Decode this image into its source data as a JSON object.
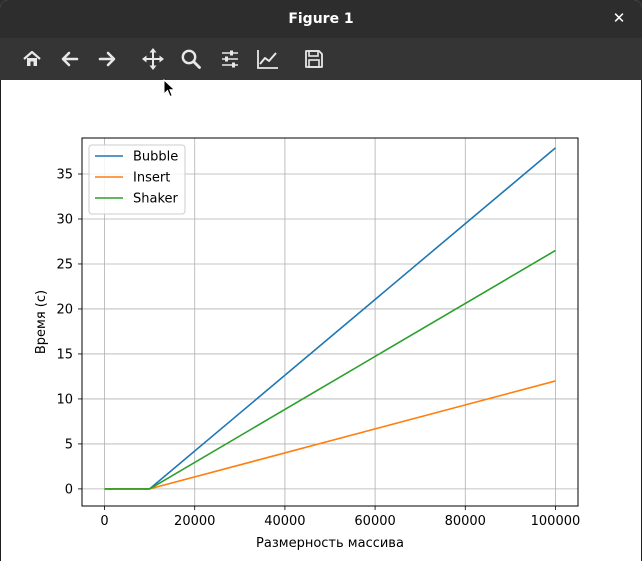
{
  "window": {
    "title": "Figure 1",
    "close_symbol": "✕"
  },
  "toolbar": {
    "buttons": [
      {
        "name": "home-button",
        "icon": "home-icon"
      },
      {
        "name": "back-button",
        "icon": "arrow-left-icon"
      },
      {
        "name": "forward-button",
        "icon": "arrow-right-icon"
      },
      {
        "name": "pan-button",
        "icon": "move-icon"
      },
      {
        "name": "zoom-button",
        "icon": "magnifier-icon"
      },
      {
        "name": "configure-subplots-button",
        "icon": "sliders-icon"
      },
      {
        "name": "edit-axis-button",
        "icon": "line-chart-icon"
      },
      {
        "name": "save-button",
        "icon": "floppy-disk-icon"
      }
    ]
  },
  "chart_data": {
    "type": "line",
    "title": "",
    "xlabel": "Размерность массива",
    "ylabel": "Время (с)",
    "xlim": [
      -5000,
      105000
    ],
    "ylim": [
      -1.9,
      39.0
    ],
    "xticks": [
      0,
      20000,
      40000,
      60000,
      80000,
      100000
    ],
    "yticks": [
      0,
      5,
      10,
      15,
      20,
      25,
      30,
      35
    ],
    "grid": true,
    "legend_position": "upper-left",
    "series": [
      {
        "name": "Bubble",
        "color": "#1f77b4",
        "x": [
          0,
          10000,
          100000
        ],
        "y": [
          0,
          0,
          37.9
        ]
      },
      {
        "name": "Insert",
        "color": "#ff7f0e",
        "x": [
          0,
          10000,
          100000
        ],
        "y": [
          0,
          0,
          12.0
        ]
      },
      {
        "name": "Shaker",
        "color": "#2ca02c",
        "x": [
          0,
          10000,
          100000
        ],
        "y": [
          0,
          0,
          26.5
        ]
      }
    ]
  }
}
